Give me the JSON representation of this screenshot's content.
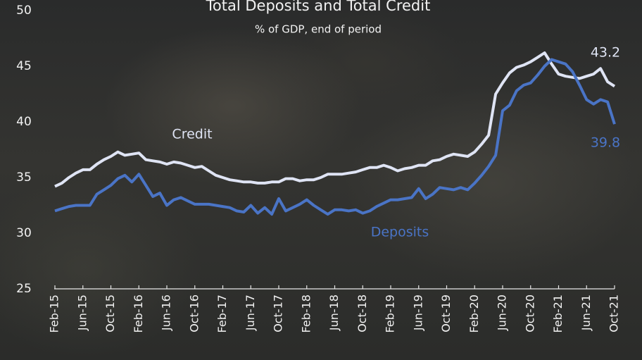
{
  "chart_data": {
    "type": "line",
    "title": "Total Deposits and Total Credit",
    "subtitle": "% of GDP, end of period",
    "categories": [
      "Feb-15",
      null,
      null,
      null,
      "Jun-15",
      null,
      null,
      null,
      "Oct-15",
      null,
      null,
      null,
      "Feb-16",
      null,
      null,
      null,
      "Jun-16",
      null,
      null,
      null,
      "Oct-16",
      null,
      null,
      null,
      "Feb-17",
      null,
      null,
      null,
      "Jun-17",
      null,
      null,
      null,
      "Oct-17",
      null,
      null,
      null,
      "Feb-18",
      null,
      null,
      null,
      "Jun-18",
      null,
      null,
      null,
      "Oct-18",
      null,
      null,
      null,
      "Feb-19",
      null,
      null,
      null,
      "Jun-19",
      null,
      null,
      null,
      "Oct-19",
      null,
      null,
      null,
      "Feb-20",
      null,
      null,
      null,
      "Jun-20",
      null,
      null,
      null,
      "Oct-20",
      null,
      null,
      null,
      "Feb-21",
      null,
      null,
      null,
      "Jun-21",
      null,
      null,
      null,
      "Oct-21"
    ],
    "series": [
      {
        "name": "Credit",
        "color": "#dfe4f4",
        "values": [
          34.2,
          34.5,
          35.0,
          35.4,
          35.7,
          35.7,
          36.2,
          36.6,
          36.9,
          37.3,
          37.0,
          37.1,
          37.2,
          36.6,
          36.5,
          36.4,
          36.2,
          36.4,
          36.3,
          36.1,
          35.9,
          36.0,
          35.6,
          35.2,
          35.0,
          34.8,
          34.7,
          34.6,
          34.6,
          34.5,
          34.5,
          34.6,
          34.6,
          34.9,
          34.9,
          34.7,
          34.8,
          34.8,
          35.0,
          35.3,
          35.3,
          35.3,
          35.4,
          35.5,
          35.7,
          35.9,
          35.9,
          36.1,
          35.9,
          35.6,
          35.8,
          35.9,
          36.1,
          36.1,
          36.5,
          36.6,
          36.9,
          37.1,
          37.0,
          36.9,
          37.3,
          38.0,
          38.8,
          42.5,
          43.5,
          44.4,
          44.9,
          45.1,
          45.4,
          45.8,
          46.2,
          45.2,
          44.3,
          44.1,
          44.0,
          43.9,
          44.1,
          44.3,
          44.8,
          43.6,
          43.2
        ]
      },
      {
        "name": "Deposits",
        "color": "#4a74c6",
        "values": [
          32.0,
          32.2,
          32.4,
          32.5,
          32.5,
          32.5,
          33.5,
          33.9,
          34.3,
          34.9,
          35.2,
          34.6,
          35.3,
          34.3,
          33.3,
          33.6,
          32.5,
          33.0,
          33.2,
          32.9,
          32.6,
          32.6,
          32.6,
          32.5,
          32.4,
          32.3,
          32.0,
          31.9,
          32.5,
          31.8,
          32.3,
          31.7,
          33.1,
          32.0,
          32.3,
          32.6,
          33.0,
          32.5,
          32.1,
          31.7,
          32.1,
          32.1,
          32.0,
          32.1,
          31.8,
          32.0,
          32.4,
          32.7,
          33.0,
          33.0,
          33.1,
          33.2,
          34.0,
          33.1,
          33.5,
          34.1,
          34.0,
          33.9,
          34.1,
          33.9,
          34.5,
          35.2,
          36.0,
          37.0,
          41.0,
          41.5,
          42.8,
          43.3,
          43.5,
          44.2,
          45.0,
          45.6,
          45.4,
          45.2,
          44.5,
          43.3,
          42.0,
          41.6,
          42.0,
          41.8,
          39.8
        ]
      }
    ],
    "annotations": [
      "Credit",
      "Deposits",
      "43.2",
      "39.8"
    ],
    "ylim": [
      25,
      50
    ],
    "yticks": [
      25,
      30,
      35,
      40,
      45,
      50
    ],
    "grid": false
  }
}
